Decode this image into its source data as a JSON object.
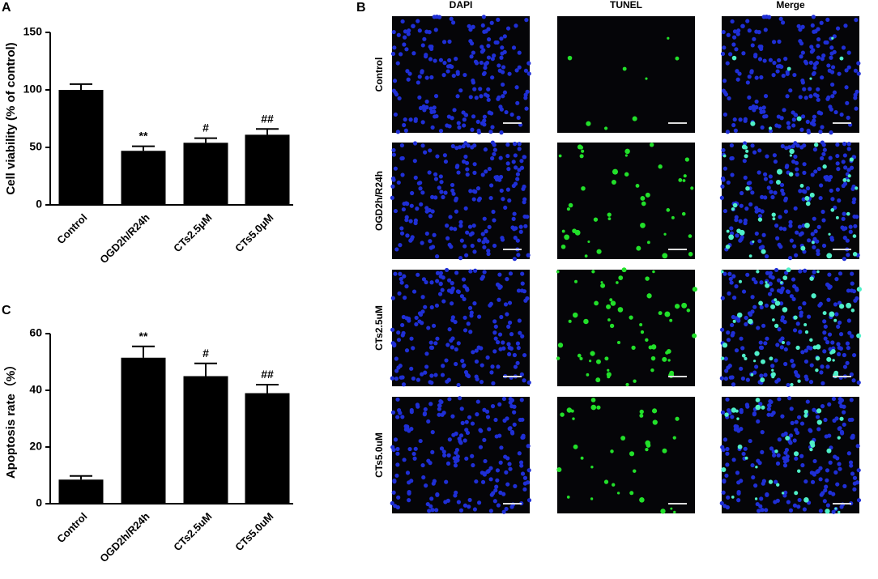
{
  "chart_data": [
    {
      "type": "bar",
      "label": "A",
      "y_label": "Cell viability  (% of control)",
      "categories": [
        "Control",
        "OGD2h/R24h",
        "CTs2.5μM",
        "CTs5.0μM"
      ],
      "values": [
        100,
        47,
        54,
        61
      ],
      "errors": [
        5,
        4,
        4,
        5
      ],
      "annotations": [
        null,
        "**",
        "#",
        "##"
      ],
      "color": "#000000",
      "ylim": [
        0,
        150
      ],
      "yticks": [
        0,
        50,
        100,
        150
      ]
    },
    {
      "type": "bar",
      "label": "C",
      "y_label": "Apoptosis rate（%）",
      "categories": [
        "Control",
        "OGD2h/R24h",
        "CTs2.5uM",
        "CTs5.0uM"
      ],
      "values": [
        8.5,
        51.5,
        45,
        39
      ],
      "errors": [
        1.3,
        4,
        4.5,
        3
      ],
      "annotations": [
        null,
        "**",
        "#",
        "##"
      ],
      "color": "#000000",
      "ylim": [
        0,
        60
      ],
      "yticks": [
        0,
        20,
        40,
        60
      ]
    }
  ],
  "panel_b": {
    "label": "B",
    "columns": [
      "DAPI",
      "TUNEL",
      "Merge"
    ],
    "rows": [
      "Control",
      "OGD2h/R24h",
      "CTs2.5uM",
      "CTs5.0uM"
    ]
  }
}
